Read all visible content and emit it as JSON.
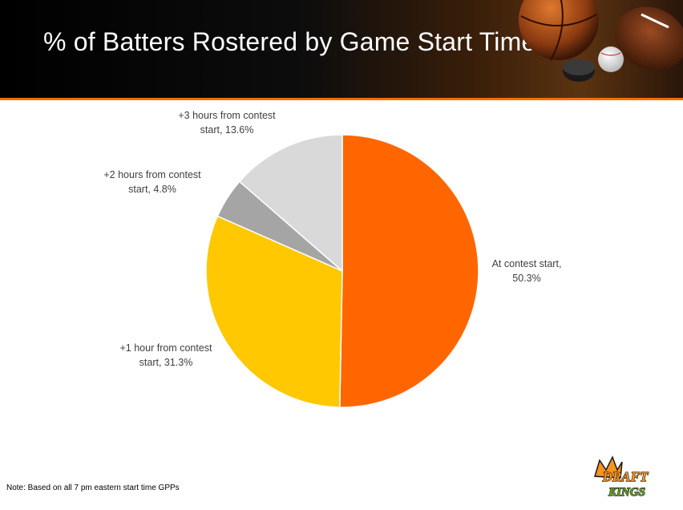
{
  "header": {
    "title": "% of Batters Rostered by Game Start Time"
  },
  "chart_data": {
    "type": "pie",
    "title": "% of Batters Rostered by Game Start Time",
    "categories": [
      "At contest start",
      "+1 hour from contest start",
      "+2 hours from contest start",
      "+3 hours from contest start"
    ],
    "values": [
      50.3,
      31.3,
      4.8,
      13.6
    ],
    "labels": [
      [
        "At contest start,",
        "50.3%"
      ],
      [
        "+1 hour from contest",
        "start, 31.3%"
      ],
      [
        "+2 hours from contest",
        "start, 4.8%"
      ],
      [
        "+3 hours from contest",
        "start, 13.6%"
      ]
    ],
    "colors": [
      "#ff6600",
      "#ffc800",
      "#a5a5a5",
      "#d9d9d9"
    ],
    "start_angle_deg": 0,
    "direction": "clockwise",
    "legend": "none (data labels)"
  },
  "footer": {
    "note": "Note: Based on all 7 pm eastern start time GPPs"
  },
  "logo": {
    "text_line1": "DRAFT",
    "text_line2": "KINGS"
  },
  "colors": {
    "header_accent": "#ff6a00",
    "header_bg": "#000000"
  }
}
